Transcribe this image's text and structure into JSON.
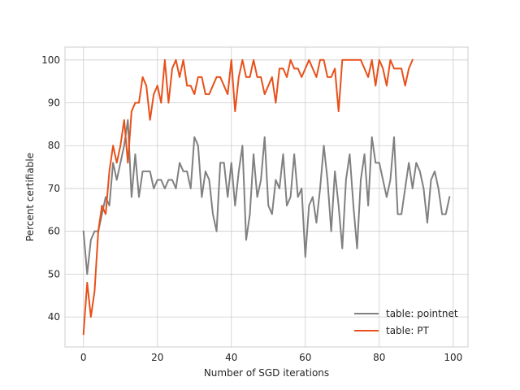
{
  "chart_data": {
    "type": "line",
    "xlabel": "Number of SGD iterations",
    "ylabel": "Percent certifiable",
    "xlim": [
      -5,
      104
    ],
    "ylim": [
      33,
      103
    ],
    "xticks": [
      0,
      20,
      40,
      60,
      80,
      100
    ],
    "yticks": [
      40,
      50,
      60,
      70,
      80,
      90,
      100
    ],
    "grid": true,
    "legend_position": "lower-right",
    "series": [
      {
        "name": "table: pointnet",
        "color": "#808080",
        "x": [
          0,
          1,
          2,
          3,
          4,
          5,
          6,
          7,
          8,
          9,
          10,
          11,
          12,
          13,
          14,
          15,
          16,
          17,
          18,
          19,
          20,
          21,
          22,
          23,
          24,
          25,
          26,
          27,
          28,
          29,
          30,
          31,
          32,
          33,
          34,
          35,
          36,
          37,
          38,
          39,
          40,
          41,
          42,
          43,
          44,
          45,
          46,
          47,
          48,
          49,
          50,
          51,
          52,
          53,
          54,
          55,
          56,
          57,
          58,
          59,
          60,
          61,
          62,
          63,
          64,
          65,
          66,
          67,
          68,
          69,
          70,
          71,
          72,
          73,
          74,
          75,
          76,
          77,
          78,
          79,
          80,
          81,
          82,
          83,
          84,
          85,
          86,
          87,
          88,
          89,
          90,
          91,
          92,
          93,
          94,
          95,
          96,
          97,
          98,
          99
        ],
        "y": [
          60,
          50,
          58,
          60,
          60,
          64,
          68,
          66,
          76,
          72,
          76,
          80,
          86,
          68,
          78,
          68,
          74,
          74,
          74,
          70,
          72,
          72,
          70,
          72,
          72,
          70,
          76,
          74,
          74,
          70,
          82,
          80,
          68,
          74,
          72,
          64,
          60,
          76,
          76,
          68,
          76,
          66,
          74,
          80,
          58,
          64,
          78,
          68,
          72,
          82,
          66,
          64,
          72,
          70,
          78,
          66,
          68,
          78,
          68,
          70,
          54,
          66,
          68,
          62,
          70,
          80,
          72,
          60,
          74,
          66,
          56,
          72,
          78,
          66,
          56,
          72,
          78,
          66,
          82,
          76,
          76,
          72,
          68,
          72,
          82,
          64,
          64,
          70,
          76,
          70,
          76,
          74,
          70,
          62,
          72,
          74,
          70,
          64,
          64,
          68
        ]
      },
      {
        "name": "table: PT",
        "color": "#e8501a",
        "x": [
          0,
          1,
          2,
          3,
          4,
          5,
          6,
          7,
          8,
          9,
          10,
          11,
          12,
          13,
          14,
          15,
          16,
          17,
          18,
          19,
          20,
          21,
          22,
          23,
          24,
          25,
          26,
          27,
          28,
          29,
          30,
          31,
          32,
          33,
          34,
          35,
          36,
          37,
          38,
          39,
          40,
          41,
          42,
          43,
          44,
          45,
          46,
          47,
          48,
          49,
          50,
          51,
          52,
          53,
          54,
          55,
          56,
          57,
          58,
          59,
          60,
          61,
          62,
          63,
          64,
          65,
          66,
          67,
          68,
          69,
          70,
          71,
          72,
          73,
          74,
          75,
          76,
          77,
          78,
          79,
          80,
          81,
          82,
          83,
          84,
          85,
          86,
          87,
          88,
          89
        ],
        "y": [
          36,
          48,
          40,
          46,
          60,
          66,
          64,
          74,
          80,
          76,
          80,
          86,
          76,
          88,
          90,
          90,
          96,
          94,
          86,
          92,
          94,
          90,
          100,
          90,
          98,
          100,
          96,
          100,
          94,
          94,
          92,
          96,
          96,
          92,
          92,
          94,
          96,
          96,
          94,
          92,
          100,
          88,
          96,
          100,
          96,
          96,
          100,
          96,
          96,
          92,
          94,
          96,
          90,
          98,
          98,
          96,
          100,
          98,
          98,
          96,
          98,
          100,
          98,
          96,
          100,
          100,
          96,
          96,
          98,
          88,
          100,
          100,
          100,
          100,
          100,
          100,
          98,
          96,
          100,
          94,
          100,
          98,
          94,
          100,
          98,
          98,
          98,
          94,
          98,
          100
        ]
      }
    ]
  }
}
